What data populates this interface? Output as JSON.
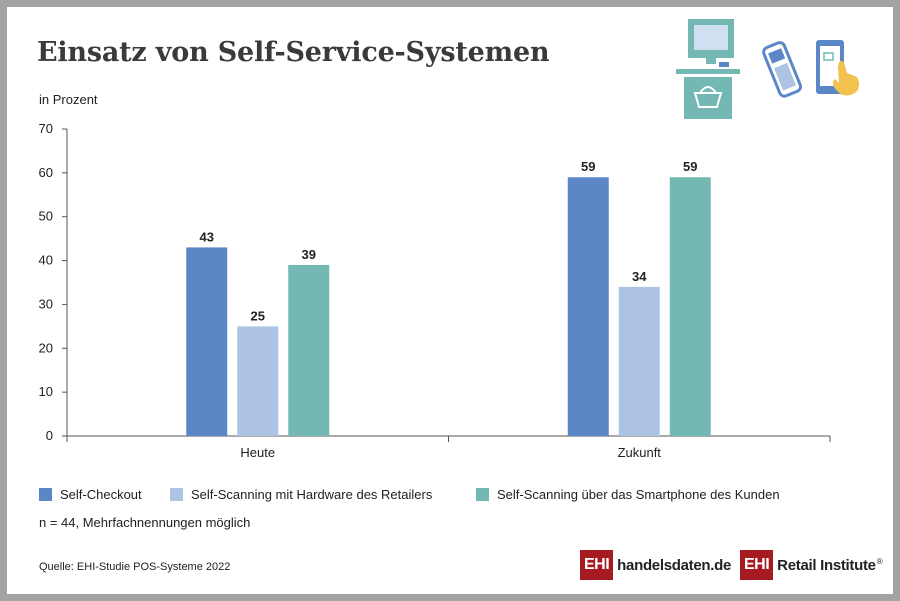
{
  "title": "Einsatz von Self-Service-Systemen",
  "subtitle": "in Prozent",
  "colors": {
    "self_checkout": "#5b87c7",
    "self_scanning_hardware": "#adc3e3",
    "self_scanning_smartphone": "#74b8b4",
    "axis": "#555555",
    "brand_red": "#a61b22"
  },
  "chart_data": {
    "type": "bar",
    "categories": [
      "Heute",
      "Zukunft"
    ],
    "series": [
      {
        "name": "Self-Checkout",
        "values": [
          43,
          59
        ],
        "color": "#5b87c7"
      },
      {
        "name": "Self-Scanning mit Hardware des Retailers",
        "values": [
          25,
          34
        ],
        "color": "#adc3e3"
      },
      {
        "name": "Self-Scanning über das Smartphone des Kunden",
        "values": [
          39,
          59
        ],
        "color": "#74b8b4"
      }
    ],
    "ylim": [
      0,
      70
    ],
    "yticks": [
      0,
      10,
      20,
      30,
      40,
      50,
      60,
      70
    ],
    "data_labels": true,
    "grid": false,
    "legend": "bottom"
  },
  "footer": {
    "note": "n = 44, Mehrfachnennungen möglich",
    "source": "Quelle: EHI-Studie POS-Systeme 2022",
    "logo1_box": "EHI",
    "logo1_text": "handelsdaten.de",
    "logo2_box": "EHI",
    "logo2_text": "Retail Institute",
    "logo2_reg": "®"
  },
  "icons": [
    "self-checkout-terminal-icon",
    "handheld-scanner-icon",
    "smartphone-touch-icon"
  ]
}
